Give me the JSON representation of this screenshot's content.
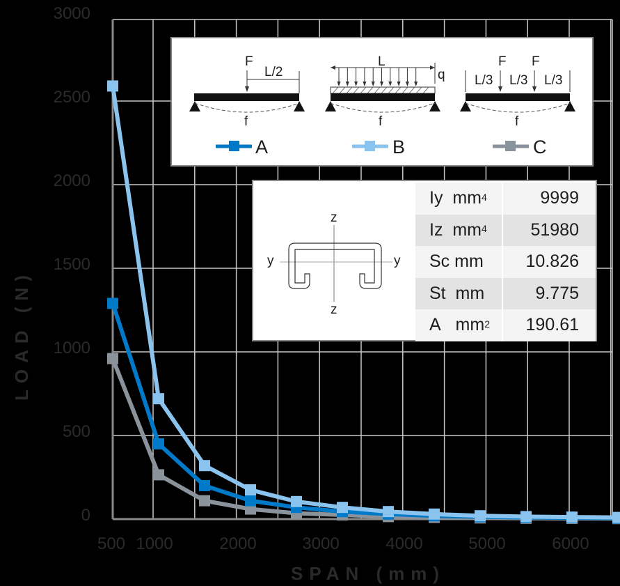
{
  "chart_data": {
    "type": "line",
    "title": "",
    "xlabel": "SPAN (mm)",
    "ylabel": "LOAD (N)",
    "xlim": [
      500,
      6550
    ],
    "ylim": [
      0,
      3000
    ],
    "x_ticks": [
      "500",
      "1000",
      "2000",
      "3000",
      "4000",
      "5000",
      "6000"
    ],
    "y_ticks": [
      "0",
      "500",
      "1000",
      "1500",
      "2000",
      "2500",
      "3000"
    ],
    "grid": true,
    "x": [
      500,
      1050,
      1600,
      2150,
      2700,
      3250,
      3800,
      4350,
      4900,
      5450,
      6000,
      6550
    ],
    "series": [
      {
        "name": "A",
        "color": "#0079c8",
        "values": [
          1290,
          450,
          200,
          110,
          70,
          45,
          30,
          20,
          14,
          10,
          8,
          6
        ]
      },
      {
        "name": "B",
        "color": "#8ac4ee",
        "values": [
          2590,
          720,
          320,
          175,
          105,
          70,
          45,
          30,
          20,
          15,
          12,
          10
        ]
      },
      {
        "name": "C",
        "color": "#8a939b",
        "values": [
          960,
          265,
          110,
          60,
          35,
          25,
          15,
          10,
          7,
          5,
          4,
          3
        ]
      }
    ],
    "legend_position": "top-right inset"
  },
  "legend": {
    "diagrams": [
      {
        "id": "A",
        "force": "F",
        "dim": "L/2",
        "deflection": "f"
      },
      {
        "id": "B",
        "dim": "L",
        "load": "q",
        "deflection": "f"
      },
      {
        "id": "C",
        "force1": "F",
        "force2": "F",
        "dims": [
          "L/3",
          "L/3",
          "L/3"
        ],
        "deflection": "f"
      }
    ],
    "labels": [
      "A",
      "B",
      "C"
    ]
  },
  "section": {
    "axes": {
      "z_top": "z",
      "z_bottom": "z",
      "y_left": "y",
      "y_right": "y"
    },
    "properties": [
      {
        "name": "Iy",
        "unit": "mm",
        "exp": "4",
        "value": "9999"
      },
      {
        "name": "Iz",
        "unit": "mm",
        "exp": "4",
        "value": "51980"
      },
      {
        "name": "Sc",
        "unit": "mm",
        "exp": "",
        "value": "10.826"
      },
      {
        "name": "St",
        "unit": "mm",
        "exp": "",
        "value": "9.775"
      },
      {
        "name": "A",
        "unit": "mm",
        "exp": "2",
        "value": "190.61"
      }
    ]
  }
}
